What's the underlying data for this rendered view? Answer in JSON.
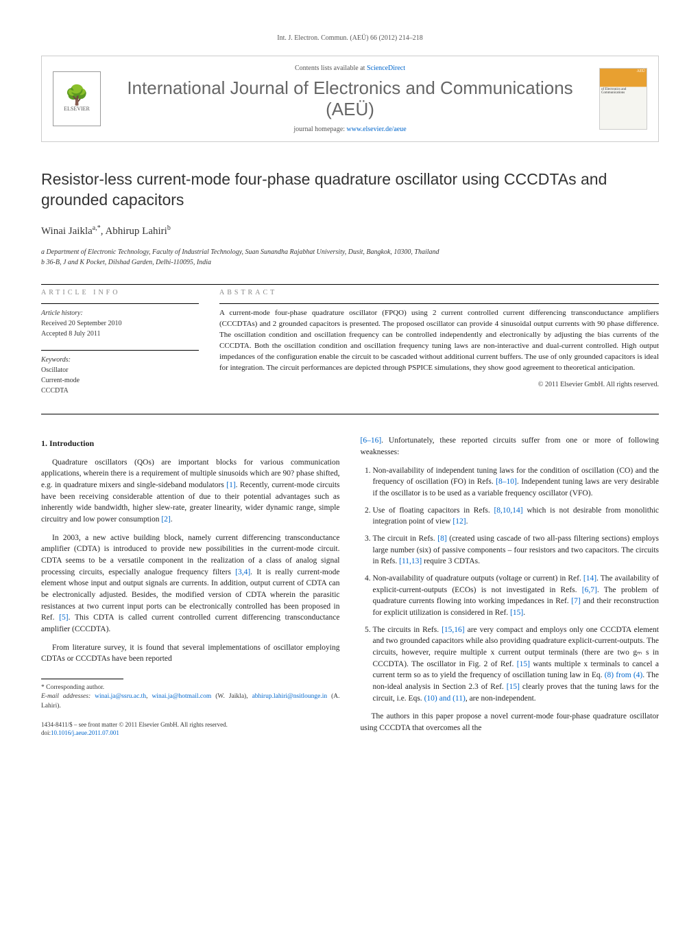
{
  "journal_ref": "Int. J. Electron. Commun. (AEÜ) 66 (2012) 214–218",
  "header": {
    "contents_prefix": "Contents lists available at ",
    "contents_link": "ScienceDirect",
    "journal_title": "International Journal of Electronics and Communications (AEÜ)",
    "homepage_prefix": "journal homepage: ",
    "homepage_link": "www.elsevier.de/aeue",
    "elsevier_label": "ELSEVIER",
    "cover_top": "AEÜ",
    "cover_sub": "of Electronics and Communications"
  },
  "article": {
    "title": "Resistor-less current-mode four-phase quadrature oscillator using CCCDTAs and grounded capacitors",
    "author1_name": "Winai Jaikla",
    "author1_sup": "a,*",
    "author_sep": ", ",
    "author2_name": "Abhirup Lahiri",
    "author2_sup": "b",
    "aff_a": "a Department of Electronic Technology, Faculty of Industrial Technology, Suan Sunandha Rajabhat University, Dusit, Bangkok, 10300, Thailand",
    "aff_b": "b 36-B, J and K Pocket, Dilshad Garden, Delhi-110095, India"
  },
  "info": {
    "heading": "article info",
    "history_label": "Article history:",
    "received": "Received 20 September 2010",
    "accepted": "Accepted 8 July 2011",
    "keywords_label": "Keywords:",
    "kw1": "Oscillator",
    "kw2": "Current-mode",
    "kw3": "CCCDTA"
  },
  "abstract": {
    "heading": "abstract",
    "text": "A current-mode four-phase quadrature oscillator (FPQO) using 2 current controlled current differencing transconductance amplifiers (CCCDTAs) and 2 grounded capacitors is presented. The proposed oscillator can provide 4 sinusoidal output currents with 90 phase difference. The oscillation condition and oscillation frequency can be controlled independently and electronically by adjusting the bias currents of the CCCDTA. Both the oscillation condition and oscillation frequency tuning laws are non-interactive and dual-current controlled. High output impedances of the configuration enable the circuit to be cascaded without additional current buffers. The use of only grounded capacitors is ideal for integration. The circuit performances are depicted through PSPICE simulations, they show good agreement to theoretical anticipation.",
    "copyright": "© 2011 Elsevier GmbH. All rights reserved."
  },
  "body": {
    "intro_heading": "1. Introduction",
    "p1a": "Quadrature oscillators (QOs) are important blocks for various communication applications, wherein there is a requirement of multiple sinusoids which are 90? phase shifted, e.g. in quadrature mixers and single-sideband modulators ",
    "p1_ref1": "[1]",
    "p1b": ". Recently, current-mode circuits have been receiving considerable attention of due to their potential advantages such as inherently wide bandwidth, higher slew-rate, greater linearity, wider dynamic range, simple circuitry and low power consumption ",
    "p1_ref2": "[2]",
    "p1c": ".",
    "p2a": "In 2003, a new active building block, namely current differencing transconductance amplifier (CDTA) is introduced to provide new possibilities in the current-mode circuit. CDTA seems to be a versatile component in the realization of a class of analog signal processing circuits, especially analogue frequency filters ",
    "p2_ref1": "[3,4]",
    "p2b": ". It is really current-mode element whose input and output signals are currents. In addition, output current of CDTA can be electronically adjusted. Besides, the modified version of CDTA wherein the parasitic resistances at two current input ports can be electronically controlled has been proposed in Ref. ",
    "p2_ref2": "[5]",
    "p2c": ". This CDTA is called current controlled current differencing transconductance amplifier (CCCDTA).",
    "p3a": "From literature survey, it is found that several implementations of oscillator employing CDTAs or CCCDTAs have been reported",
    "r1a": "",
    "r1_ref1": "[6–16]",
    "r1b": ". Unfortunately, these reported circuits suffer from one or more of following weaknesses:",
    "li1a": "Non-availability of independent tuning laws for the condition of oscillation (CO) and the frequency of oscillation (FO) in Refs. ",
    "li1_ref": "[8–10]",
    "li1b": ". Independent tuning laws are very desirable if the oscillator is to be used as a variable frequency oscillator (VFO).",
    "li2a": "Use of floating capacitors in Refs. ",
    "li2_ref": "[8,10,14]",
    "li2b": " which is not desirable from monolithic integration point of view ",
    "li2_ref2": "[12]",
    "li2c": ".",
    "li3a": "The circuit in Refs. ",
    "li3_ref": "[8]",
    "li3b": " (created using cascade of two all-pass filtering sections) employs large number (six) of passive components – four resistors and two capacitors. The circuits in Refs. ",
    "li3_ref2": "[11,13]",
    "li3c": " require 3 CDTAs.",
    "li4a": "Non-availability of quadrature outputs (voltage or current) in Ref. ",
    "li4_ref": "[14]",
    "li4b": ". The availability of explicit-current-outputs (ECOs) is not investigated in Refs. ",
    "li4_ref2": "[6,7]",
    "li4c": ". The problem of quadrature currents flowing into working impedances in Ref. ",
    "li4_ref3": "[7]",
    "li4d": " and their reconstruction for explicit utilization is considered in Ref. ",
    "li4_ref4": "[15]",
    "li4e": ".",
    "li5a": "The circuits in Refs. ",
    "li5_ref": "[15,16]",
    "li5b": " are very compact and employs only one CCCDTA element and two grounded capacitors while also providing quadrature explicit-current-outputs. The circuits, however, require multiple x current output terminals (there are two gₘ s in CCCDTA). The oscillator in Fig. 2 of Ref. ",
    "li5_ref2": "[15]",
    "li5c": " wants multiple x terminals to cancel a current term so as to yield the frequency of oscillation tuning law in Eq. ",
    "li5_ref3": "(8) from (4)",
    "li5d": ". The non-ideal analysis in Section 2.3 of Ref. ",
    "li5_ref4": "[15]",
    "li5e": " clearly proves that the tuning laws for the circuit, i.e. Eqs. ",
    "li5_ref5": "(10) and (11)",
    "li5f": ", are non-independent.",
    "r2": "The authors in this paper propose a novel current-mode four-phase quadrature oscillator using CCCDTA that overcomes all the"
  },
  "footnotes": {
    "corr": "* Corresponding author.",
    "email_label": "E-mail addresses: ",
    "email1": "winai.ja@ssru.ac.th",
    "email_sep1": ", ",
    "email2": "winai.ja@hotmail.com",
    "email_aff1": " (W. Jaikla), ",
    "email3": "abhirup.lahiri@nsitlounge.in",
    "email_aff2": " (A. Lahiri)."
  },
  "bottom": {
    "issn": "1434-8411/$ – see front matter © 2011 Elsevier GmbH. All rights reserved.",
    "doi_label": "doi:",
    "doi": "10.1016/j.aeue.2011.07.001"
  }
}
